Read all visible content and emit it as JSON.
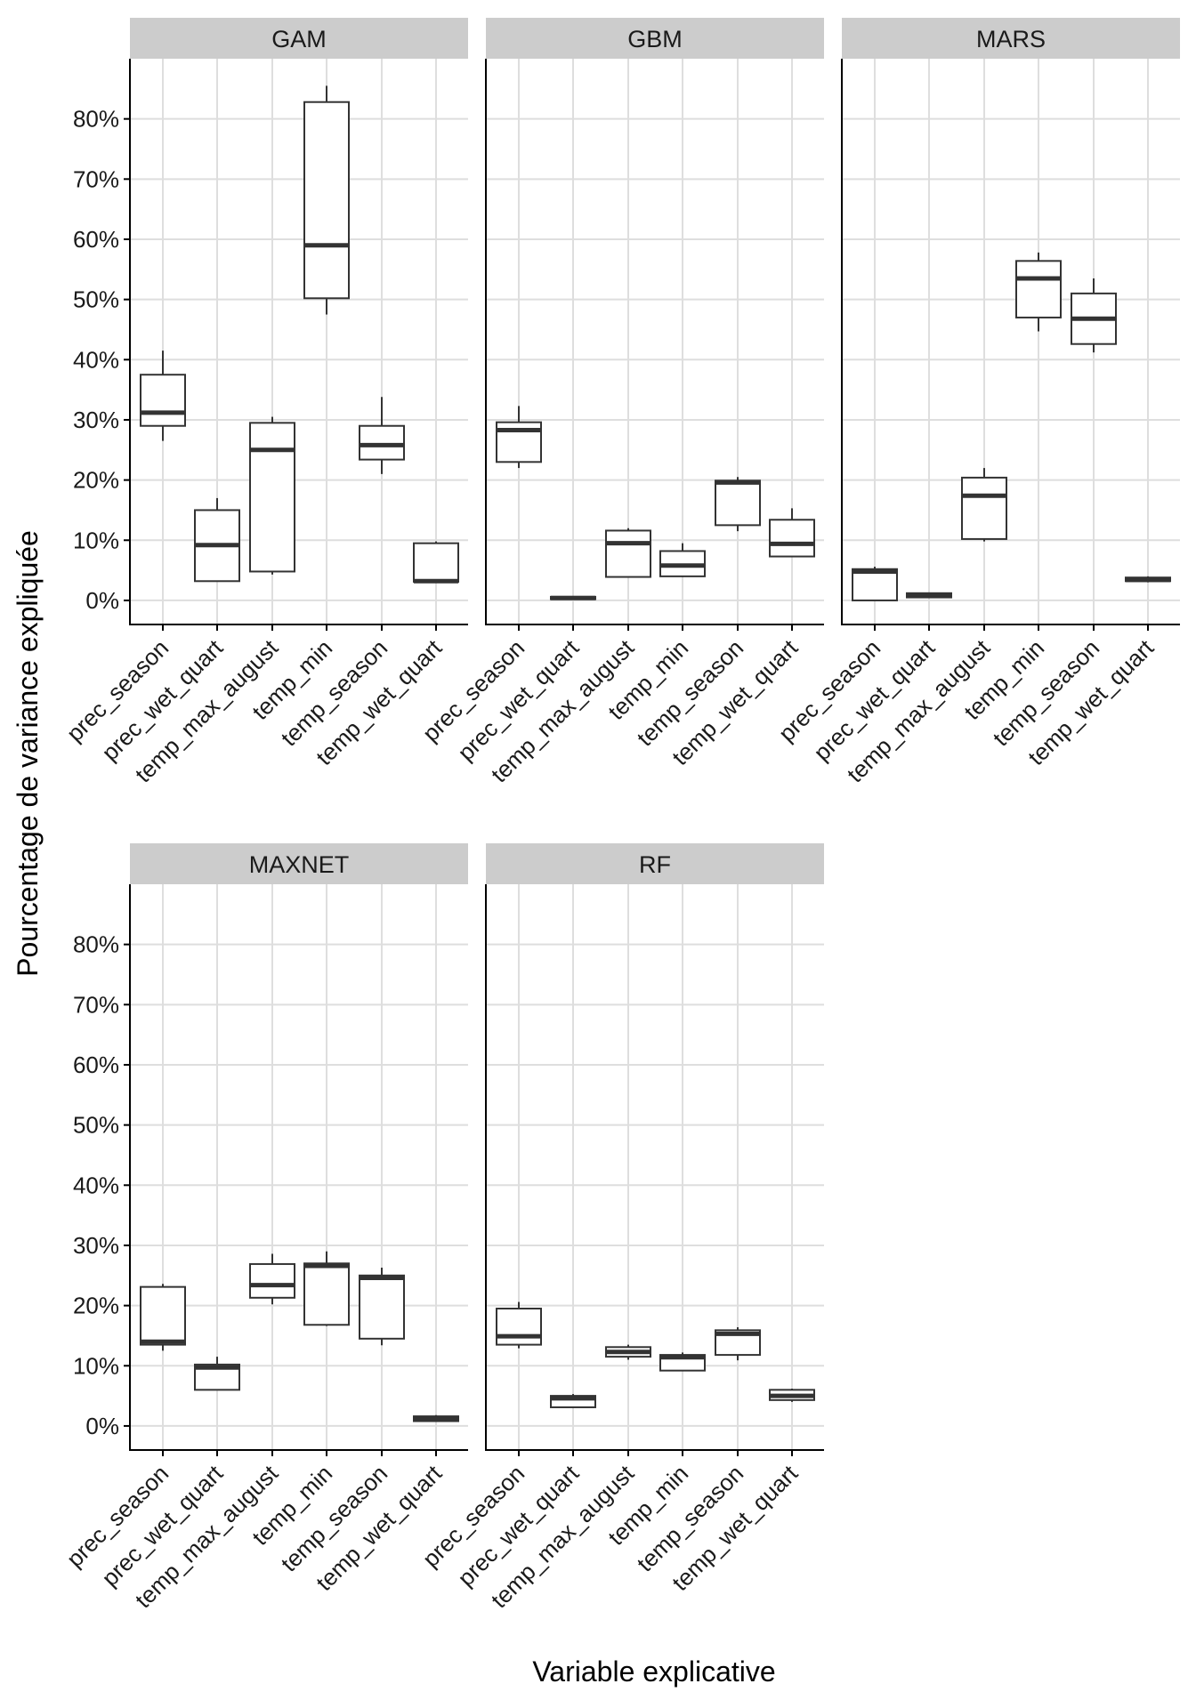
{
  "chart_data": {
    "type": "boxplot",
    "xlabel": "Variable explicative",
    "ylabel": "Pourcentage de variance expliquée",
    "ylim": [
      -4,
      90
    ],
    "yticks": [
      0,
      10,
      20,
      30,
      40,
      50,
      60,
      70,
      80
    ],
    "ytick_labels": [
      "0%",
      "10%",
      "20%",
      "30%",
      "40%",
      "50%",
      "60%",
      "70%",
      "80%"
    ],
    "categories": [
      "prec_season",
      "prec_wet_quart",
      "temp_max_august",
      "temp_min",
      "temp_season",
      "temp_wet_quart"
    ],
    "grid": true,
    "colors": {
      "strip_bg": "#cccccc",
      "grid": "#dedede",
      "box": "#333333",
      "axis": "#000000",
      "text": "#1a1a1a"
    },
    "panels": [
      {
        "title": "GAM",
        "boxes": [
          {
            "min": 26.5,
            "q1": 29,
            "median": 31.2,
            "q3": 37.5,
            "max": 41.5
          },
          {
            "min": 3.2,
            "q1": 3.2,
            "median": 9.2,
            "q3": 15,
            "max": 17
          },
          {
            "min": 4.3,
            "q1": 4.8,
            "median": 25,
            "q3": 29.5,
            "max": 30.5
          },
          {
            "min": 47.5,
            "q1": 50.2,
            "median": 59,
            "q3": 82.8,
            "max": 85.5
          },
          {
            "min": 21,
            "q1": 23.4,
            "median": 25.8,
            "q3": 29,
            "max": 33.8
          },
          {
            "min": 3,
            "q1": 3.1,
            "median": 3.2,
            "q3": 9.5,
            "max": 9.8
          }
        ]
      },
      {
        "title": "GBM",
        "boxes": [
          {
            "min": 22,
            "q1": 23,
            "median": 28.3,
            "q3": 29.6,
            "max": 32.3
          },
          {
            "min": 0.1,
            "q1": 0.2,
            "median": 0.4,
            "q3": 0.6,
            "max": 0.7
          },
          {
            "min": 3.8,
            "q1": 3.9,
            "median": 9.5,
            "q3": 11.6,
            "max": 12
          },
          {
            "min": 3.9,
            "q1": 4,
            "median": 5.8,
            "q3": 8.2,
            "max": 9.5
          },
          {
            "min": 11.5,
            "q1": 12.5,
            "median": 19.6,
            "q3": 19.9,
            "max": 20.5
          },
          {
            "min": 7.2,
            "q1": 7.3,
            "median": 9.4,
            "q3": 13.4,
            "max": 15.3
          }
        ]
      },
      {
        "title": "MARS",
        "boxes": [
          {
            "min": 0,
            "q1": 0,
            "median": 4.8,
            "q3": 5.2,
            "max": 5.6
          },
          {
            "min": 0.4,
            "q1": 0.5,
            "median": 0.8,
            "q3": 1.2,
            "max": 1.3
          },
          {
            "min": 9.8,
            "q1": 10.2,
            "median": 17.4,
            "q3": 20.4,
            "max": 22
          },
          {
            "min": 44.7,
            "q1": 47,
            "median": 53.5,
            "q3": 56.4,
            "max": 57.8
          },
          {
            "min": 41.2,
            "q1": 42.6,
            "median": 46.8,
            "q3": 51,
            "max": 53.5
          },
          {
            "min": 3,
            "q1": 3.2,
            "median": 3.4,
            "q3": 3.8,
            "max": 4
          }
        ]
      },
      {
        "title": "MAXNET",
        "boxes": [
          {
            "min": 12.5,
            "q1": 13.5,
            "median": 14,
            "q3": 23.1,
            "max": 23.6
          },
          {
            "min": 6,
            "q1": 6,
            "median": 9.7,
            "q3": 10.2,
            "max": 11.5
          },
          {
            "min": 20.2,
            "q1": 21.3,
            "median": 23.4,
            "q3": 26.9,
            "max": 28.6
          },
          {
            "min": 16.6,
            "q1": 16.8,
            "median": 26.6,
            "q3": 27,
            "max": 29
          },
          {
            "min": 13.4,
            "q1": 14.5,
            "median": 24.6,
            "q3": 25,
            "max": 26.3
          },
          {
            "min": 0.7,
            "q1": 0.8,
            "median": 1.2,
            "q3": 1.6,
            "max": 1.8
          }
        ]
      },
      {
        "title": "RF",
        "boxes": [
          {
            "min": 12.9,
            "q1": 13.5,
            "median": 14.9,
            "q3": 19.5,
            "max": 20.6
          },
          {
            "min": 3,
            "q1": 3.1,
            "median": 4.6,
            "q3": 5,
            "max": 5.3
          },
          {
            "min": 11,
            "q1": 11.5,
            "median": 12.3,
            "q3": 13.1,
            "max": 13.5
          },
          {
            "min": 9.1,
            "q1": 9.2,
            "median": 11.4,
            "q3": 11.8,
            "max": 12.2
          },
          {
            "min": 10.9,
            "q1": 11.8,
            "median": 15.3,
            "q3": 15.9,
            "max": 16.4
          },
          {
            "min": 4,
            "q1": 4.3,
            "median": 5,
            "q3": 6,
            "max": 6.2
          }
        ]
      }
    ]
  }
}
